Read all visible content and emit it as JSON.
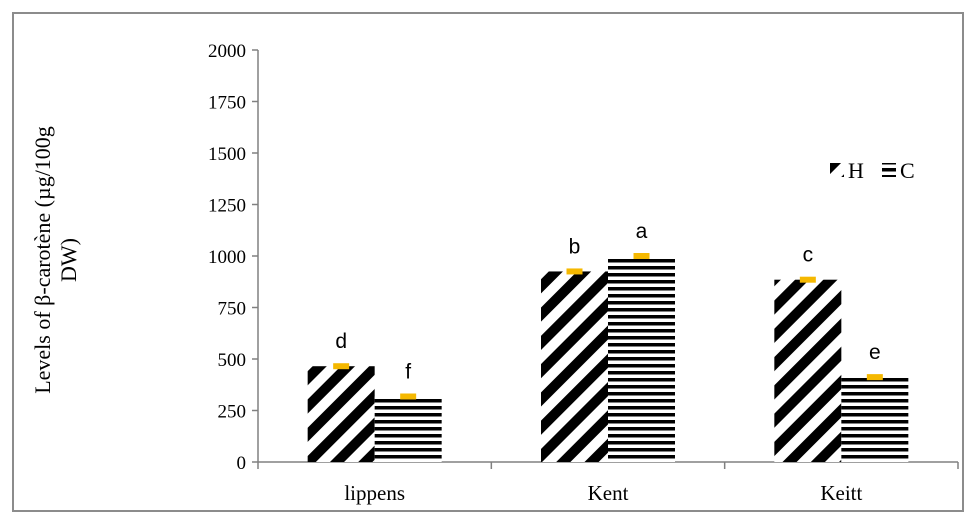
{
  "chart_data": {
    "type": "bar",
    "categories": [
      "lippens",
      "Kent",
      "Keitt"
    ],
    "series": [
      {
        "name": "H",
        "values": [
          465,
          925,
          885
        ],
        "pattern": "diagonal-stripes"
      },
      {
        "name": "C",
        "values": [
          318,
          1000,
          412
        ],
        "pattern": "horizontal-stripes"
      }
    ],
    "significance_letters": [
      [
        "d",
        "f"
      ],
      [
        "b",
        "a"
      ],
      [
        "c",
        "e"
      ]
    ],
    "ylabel_lines": [
      "Levels of  β-carotène (µg/100g",
      "DW)"
    ],
    "xlabel": "",
    "ylim": [
      0,
      2000
    ],
    "yticks": [
      0,
      250,
      500,
      750,
      1000,
      1250,
      1500,
      1750,
      2000
    ],
    "legend_position": "right",
    "grid": false,
    "colors": {
      "bars": "#000000",
      "error_bar": "#f5b800",
      "frame": "#8c8c8c",
      "axis": "#808080"
    }
  }
}
